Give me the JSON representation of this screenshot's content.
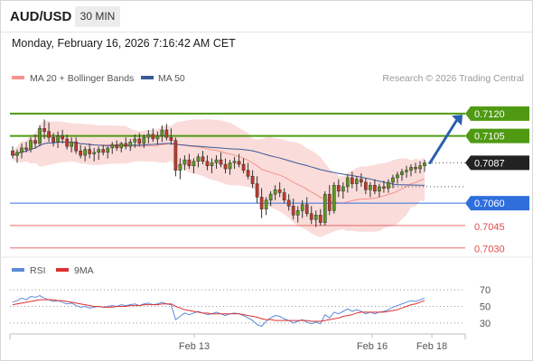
{
  "header": {
    "symbol": "AUD/USD",
    "timeframe": "30 MIN",
    "datetime": "Monday, February 16, 2026 7:16:42 AM CET"
  },
  "legend": {
    "items": [
      {
        "label": "MA 20 + Bollinger Bands",
        "color": "#f4938c"
      },
      {
        "label": "MA 50",
        "color": "#3b5a9a"
      }
    ],
    "copyright": "Research © 2026 Trading Central"
  },
  "chart_data": [
    {
      "type": "candlestick",
      "x_labels": [
        "Feb 13",
        "Feb 16",
        "Feb 18"
      ],
      "ylim": [
        0.7025,
        0.7135
      ],
      "last_price": {
        "value": 0.7087,
        "label": "0.7087",
        "color": "#222222"
      },
      "levels": [
        {
          "value": 0.712,
          "label": "0.7120",
          "color": "#4f9a12",
          "style": "resistance",
          "tag": true
        },
        {
          "value": 0.7105,
          "label": "0.7105",
          "color": "#4f9a12",
          "style": "resistance",
          "tag": true
        },
        {
          "value": 0.706,
          "label": "0.7060",
          "color": "#2f6fdc",
          "style": "pivot",
          "tag": true
        },
        {
          "value": 0.7045,
          "label": "0.7045",
          "color": "#e04b4b",
          "style": "support",
          "tag": false
        },
        {
          "value": 0.703,
          "label": "0.7030",
          "color": "#e04b4b",
          "style": "support",
          "tag": false
        }
      ],
      "arrow": {
        "from": 0.7087,
        "to": 0.7118,
        "color": "#2a5fb0"
      },
      "candles": [
        [
          0.7095,
          0.7098,
          0.709,
          0.7092
        ],
        [
          0.7092,
          0.7096,
          0.7087,
          0.7094
        ],
        [
          0.7094,
          0.71,
          0.709,
          0.7097
        ],
        [
          0.7097,
          0.7101,
          0.7094,
          0.7096
        ],
        [
          0.7096,
          0.7104,
          0.7094,
          0.7102
        ],
        [
          0.7102,
          0.7106,
          0.7097,
          0.71
        ],
        [
          0.71,
          0.7112,
          0.7098,
          0.711
        ],
        [
          0.711,
          0.7116,
          0.7103,
          0.7108
        ],
        [
          0.7108,
          0.7114,
          0.7101,
          0.7104
        ],
        [
          0.7104,
          0.7107,
          0.7098,
          0.7101
        ],
        [
          0.7101,
          0.7108,
          0.7097,
          0.7105
        ],
        [
          0.7105,
          0.7109,
          0.71,
          0.7103
        ],
        [
          0.7103,
          0.7106,
          0.7096,
          0.7098
        ],
        [
          0.7098,
          0.7104,
          0.7094,
          0.7101
        ],
        [
          0.7101,
          0.7104,
          0.7093,
          0.7095
        ],
        [
          0.7095,
          0.7099,
          0.709,
          0.7092
        ],
        [
          0.7092,
          0.7098,
          0.7088,
          0.7096
        ],
        [
          0.7096,
          0.71,
          0.709,
          0.7093
        ],
        [
          0.7093,
          0.7097,
          0.7088,
          0.7094
        ],
        [
          0.7094,
          0.7098,
          0.7089,
          0.7096
        ],
        [
          0.7096,
          0.7099,
          0.7092,
          0.7094
        ],
        [
          0.7094,
          0.7098,
          0.709,
          0.7097
        ],
        [
          0.7097,
          0.7101,
          0.7093,
          0.7099
        ],
        [
          0.7099,
          0.7102,
          0.7095,
          0.7097
        ],
        [
          0.7097,
          0.7101,
          0.7094,
          0.71
        ],
        [
          0.71,
          0.7104,
          0.7096,
          0.7098
        ],
        [
          0.7098,
          0.7103,
          0.7095,
          0.7101
        ],
        [
          0.7101,
          0.7106,
          0.7097,
          0.7103
        ],
        [
          0.7103,
          0.7107,
          0.7098,
          0.71
        ],
        [
          0.71,
          0.7106,
          0.7097,
          0.7104
        ],
        [
          0.7104,
          0.7109,
          0.71,
          0.7106
        ],
        [
          0.7106,
          0.711,
          0.7101,
          0.7103
        ],
        [
          0.7103,
          0.7108,
          0.7099,
          0.7105
        ],
        [
          0.7105,
          0.7112,
          0.7101,
          0.7109
        ],
        [
          0.7109,
          0.7113,
          0.7102,
          0.7104
        ],
        [
          0.7104,
          0.711,
          0.7099,
          0.7102
        ],
        [
          0.7102,
          0.7104,
          0.7078,
          0.7082
        ],
        [
          0.7082,
          0.709,
          0.7076,
          0.7086
        ],
        [
          0.7086,
          0.7092,
          0.7082,
          0.7089
        ],
        [
          0.7089,
          0.7093,
          0.7083,
          0.7085
        ],
        [
          0.7085,
          0.709,
          0.708,
          0.7088
        ],
        [
          0.7088,
          0.7093,
          0.7084,
          0.7091
        ],
        [
          0.7091,
          0.7095,
          0.7086,
          0.7088
        ],
        [
          0.7088,
          0.7092,
          0.7082,
          0.7085
        ],
        [
          0.7085,
          0.709,
          0.708,
          0.7087
        ],
        [
          0.7087,
          0.7092,
          0.7083,
          0.7089
        ],
        [
          0.7089,
          0.7094,
          0.7084,
          0.7086
        ],
        [
          0.7086,
          0.709,
          0.708,
          0.7083
        ],
        [
          0.7083,
          0.7089,
          0.7079,
          0.7087
        ],
        [
          0.7087,
          0.7091,
          0.7083,
          0.7088
        ],
        [
          0.7088,
          0.7093,
          0.7084,
          0.7086
        ],
        [
          0.7086,
          0.709,
          0.708,
          0.7082
        ],
        [
          0.7082,
          0.7087,
          0.7076,
          0.7078
        ],
        [
          0.7078,
          0.7082,
          0.707,
          0.7073
        ],
        [
          0.7073,
          0.7078,
          0.706,
          0.7064
        ],
        [
          0.7064,
          0.707,
          0.705,
          0.7056
        ],
        [
          0.7056,
          0.7064,
          0.7052,
          0.7062
        ],
        [
          0.7062,
          0.7068,
          0.7058,
          0.7066
        ],
        [
          0.7066,
          0.7072,
          0.7062,
          0.7069
        ],
        [
          0.7069,
          0.7074,
          0.7064,
          0.7067
        ],
        [
          0.7067,
          0.707,
          0.706,
          0.7062
        ],
        [
          0.7062,
          0.7066,
          0.7055,
          0.7058
        ],
        [
          0.7058,
          0.7063,
          0.7049,
          0.7052
        ],
        [
          0.7052,
          0.7058,
          0.7047,
          0.7055
        ],
        [
          0.7055,
          0.7062,
          0.705,
          0.7059
        ],
        [
          0.7059,
          0.7064,
          0.7051,
          0.7053
        ],
        [
          0.7053,
          0.7058,
          0.7046,
          0.7049
        ],
        [
          0.7049,
          0.7055,
          0.7044,
          0.7052
        ],
        [
          0.7052,
          0.7056,
          0.7045,
          0.7047
        ],
        [
          0.7047,
          0.7068,
          0.7045,
          0.7066
        ],
        [
          0.7066,
          0.7072,
          0.7052,
          0.7055
        ],
        [
          0.7055,
          0.7074,
          0.7053,
          0.7072
        ],
        [
          0.7072,
          0.7076,
          0.7064,
          0.7068
        ],
        [
          0.7068,
          0.7074,
          0.7063,
          0.7071
        ],
        [
          0.7071,
          0.7079,
          0.7067,
          0.7077
        ],
        [
          0.7077,
          0.7081,
          0.707,
          0.7073
        ],
        [
          0.7073,
          0.7078,
          0.7068,
          0.7076
        ],
        [
          0.7076,
          0.708,
          0.7071,
          0.7074
        ],
        [
          0.7074,
          0.7077,
          0.7066,
          0.7069
        ],
        [
          0.7069,
          0.7074,
          0.7064,
          0.7072
        ],
        [
          0.7072,
          0.7076,
          0.7066,
          0.7068
        ],
        [
          0.7068,
          0.7073,
          0.7064,
          0.7071
        ],
        [
          0.7071,
          0.7075,
          0.7067,
          0.707
        ],
        [
          0.707,
          0.7076,
          0.7067,
          0.7074
        ],
        [
          0.7074,
          0.7079,
          0.707,
          0.7077
        ],
        [
          0.7077,
          0.7081,
          0.7073,
          0.7079
        ],
        [
          0.7079,
          0.7083,
          0.7075,
          0.7081
        ],
        [
          0.7081,
          0.7085,
          0.7077,
          0.7082
        ],
        [
          0.7082,
          0.7086,
          0.7078,
          0.7084
        ],
        [
          0.7084,
          0.7087,
          0.708,
          0.7083
        ],
        [
          0.7083,
          0.7088,
          0.708,
          0.7085
        ],
        [
          0.7085,
          0.7089,
          0.7081,
          0.7087
        ]
      ]
    },
    {
      "type": "line",
      "legend": [
        {
          "label": "RSI",
          "color": "#5b8bd9"
        },
        {
          "label": "9MA",
          "color": "#e03030"
        }
      ],
      "ylim": [
        20,
        80
      ],
      "ticks": [
        70,
        50,
        30
      ],
      "rsi": [
        55,
        57,
        60,
        58,
        62,
        61,
        63,
        60,
        58,
        56,
        57,
        55,
        53,
        54,
        51,
        49,
        50,
        48,
        49,
        50,
        49,
        50,
        51,
        50,
        52,
        51,
        52,
        53,
        51,
        53,
        54,
        52,
        53,
        55,
        53,
        52,
        34,
        38,
        42,
        40,
        42,
        44,
        42,
        40,
        41,
        43,
        41,
        39,
        41,
        42,
        41,
        39,
        36,
        33,
        28,
        26,
        32,
        36,
        39,
        38,
        35,
        33,
        30,
        32,
        34,
        31,
        29,
        31,
        29,
        40,
        36,
        43,
        41,
        44,
        47,
        44,
        46,
        44,
        41,
        43,
        41,
        43,
        44,
        46,
        49,
        51,
        53,
        55,
        57,
        56,
        58,
        60
      ],
      "ma9": [
        52,
        53,
        54,
        55,
        56,
        57,
        58,
        58,
        58,
        58,
        57,
        57,
        56,
        55,
        54,
        53,
        52,
        51,
        50,
        50,
        49,
        49,
        49,
        50,
        50,
        50,
        51,
        51,
        51,
        52,
        52,
        52,
        52,
        53,
        53,
        53,
        50,
        48,
        46,
        45,
        44,
        43,
        42,
        42,
        41,
        41,
        41,
        41,
        41,
        41,
        41,
        40,
        39,
        38,
        37,
        35,
        34,
        34,
        33,
        33,
        33,
        33,
        33,
        33,
        33,
        33,
        32,
        32,
        32,
        33,
        34,
        35,
        36,
        38,
        39,
        40,
        42,
        43,
        43,
        43,
        43,
        43,
        43,
        44,
        45,
        46,
        48,
        50,
        52,
        53,
        55,
        57
      ]
    }
  ]
}
